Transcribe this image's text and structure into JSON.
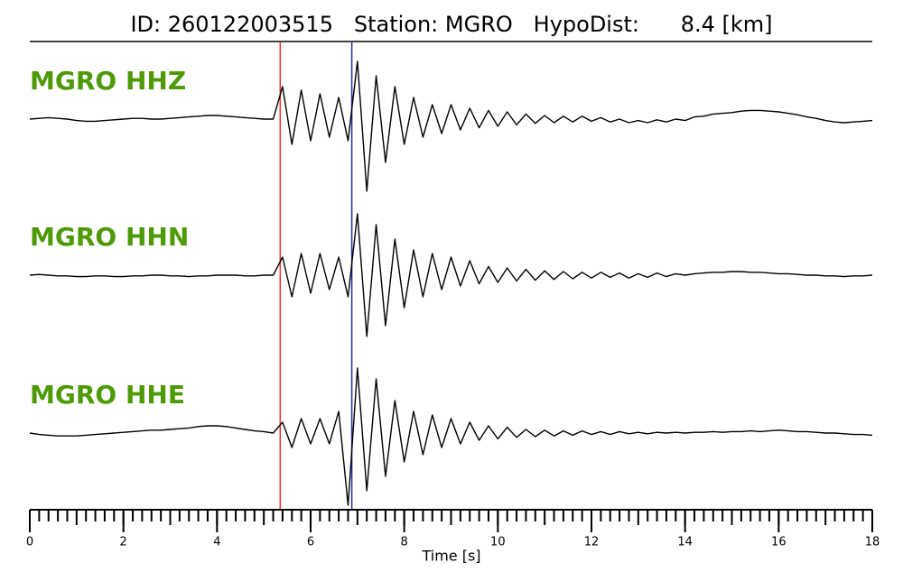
{
  "chart_data": {
    "type": "line",
    "title": "ID: 260122003515   Station: MGRO   HypoDist:      8.4 [km]",
    "xlabel": "Time [s]",
    "xlim": [
      0,
      18
    ],
    "xticks": [
      0,
      2,
      4,
      6,
      8,
      10,
      12,
      14,
      16,
      18
    ],
    "xminor_step": 0.2,
    "ylim": [
      -1,
      1
    ],
    "label_color": "#4e9a06",
    "picks": [
      {
        "x": 5.35,
        "color": "#e8312f"
      },
      {
        "x": 6.88,
        "color": "#2a2aa8"
      }
    ],
    "x": [
      0,
      0.2,
      0.4,
      0.6,
      0.8,
      1,
      1.2,
      1.4,
      1.6,
      1.8,
      2,
      2.2,
      2.4,
      2.6,
      2.8,
      3,
      3.2,
      3.4,
      3.6,
      3.8,
      4,
      4.2,
      4.4,
      4.6,
      4.8,
      5,
      5.2,
      5.4,
      5.6,
      5.8,
      6,
      6.2,
      6.4,
      6.6,
      6.8,
      7,
      7.2,
      7.4,
      7.6,
      7.8,
      8,
      8.2,
      8.4,
      8.6,
      8.8,
      9,
      9.2,
      9.4,
      9.6,
      9.8,
      10,
      10.2,
      10.4,
      10.6,
      10.8,
      11,
      11.2,
      11.4,
      11.6,
      11.8,
      12,
      12.2,
      12.4,
      12.6,
      12.8,
      13,
      13.2,
      13.4,
      13.6,
      13.8,
      14,
      14.2,
      14.4,
      14.6,
      14.8,
      15,
      15.2,
      15.4,
      15.6,
      15.8,
      16,
      16.2,
      16.4,
      16.6,
      16.8,
      17,
      17.2,
      17.4,
      17.6,
      17.8,
      18
    ],
    "series": [
      {
        "name": "MGRO HHZ",
        "color": "#000000",
        "values": [
          0,
          0.01,
          0.02,
          0.01,
          0,
          -0.02,
          -0.03,
          -0.03,
          -0.02,
          -0.01,
          0,
          0.01,
          0.01,
          0,
          0,
          0.01,
          0.02,
          0.03,
          0.04,
          0.05,
          0.05,
          0.04,
          0.03,
          0.02,
          0.01,
          0,
          0,
          0.45,
          -0.35,
          0.4,
          -0.3,
          0.35,
          -0.25,
          0.3,
          -0.3,
          0.8,
          -1.0,
          0.6,
          -0.6,
          0.45,
          -0.35,
          0.3,
          -0.25,
          0.2,
          -0.2,
          0.2,
          -0.15,
          0.15,
          -0.12,
          0.12,
          -0.1,
          0.1,
          -0.08,
          0.07,
          -0.06,
          0.05,
          -0.05,
          0.04,
          -0.04,
          0.04,
          -0.03,
          0.02,
          -0.04,
          0,
          -0.05,
          -0.02,
          -0.05,
          -0.01,
          -0.04,
          0,
          -0.02,
          0.03,
          0.04,
          0.07,
          0.08,
          0.09,
          0.11,
          0.12,
          0.12,
          0.11,
          0.1,
          0.08,
          0.06,
          0.03,
          0.01,
          -0.02,
          -0.04,
          -0.05,
          -0.04,
          -0.03,
          -0.02
        ]
      },
      {
        "name": "MGRO HHN",
        "color": "#000000",
        "values": [
          0,
          0.01,
          0,
          -0.01,
          -0.01,
          -0.02,
          -0.02,
          -0.01,
          -0.01,
          -0.02,
          -0.02,
          -0.01,
          -0.01,
          0,
          0,
          -0.01,
          -0.01,
          -0.02,
          -0.01,
          -0.01,
          0,
          0,
          0,
          -0.01,
          -0.01,
          0,
          0,
          0.25,
          -0.3,
          0.3,
          -0.25,
          0.3,
          -0.2,
          0.25,
          -0.3,
          0.85,
          -0.85,
          0.7,
          -0.7,
          0.5,
          -0.45,
          0.35,
          -0.3,
          0.3,
          -0.2,
          0.25,
          -0.15,
          0.2,
          -0.12,
          0.12,
          -0.1,
          0.1,
          -0.08,
          0.08,
          -0.07,
          0.06,
          -0.06,
          0.05,
          -0.05,
          0.04,
          -0.04,
          0.04,
          -0.03,
          0.03,
          -0.04,
          0.02,
          -0.03,
          0.03,
          -0.02,
          0.02,
          0,
          0.02,
          0.03,
          0.04,
          0.04,
          0.05,
          0.05,
          0.04,
          0.04,
          0.03,
          0.02,
          0.02,
          0.01,
          0,
          0,
          -0.01,
          -0.01,
          -0.02,
          -0.01,
          -0.01,
          0
        ]
      },
      {
        "name": "MGRO HHE",
        "color": "#000000",
        "values": [
          0,
          -0.02,
          -0.03,
          -0.04,
          -0.04,
          -0.04,
          -0.03,
          -0.02,
          -0.01,
          0,
          0.01,
          0.02,
          0.03,
          0.04,
          0.04,
          0.05,
          0.06,
          0.07,
          0.09,
          0.1,
          0.1,
          0.09,
          0.07,
          0.05,
          0.03,
          0.02,
          0,
          0.15,
          -0.2,
          0.2,
          -0.15,
          0.2,
          -0.15,
          0.3,
          -1.0,
          0.9,
          -0.8,
          0.75,
          -0.6,
          0.45,
          -0.4,
          0.3,
          -0.3,
          0.25,
          -0.2,
          0.2,
          -0.15,
          0.15,
          -0.1,
          0.1,
          -0.08,
          0.08,
          -0.06,
          0.05,
          -0.05,
          0.04,
          -0.04,
          0.03,
          -0.03,
          0.03,
          -0.02,
          0.02,
          -0.02,
          0.02,
          -0.01,
          0.01,
          -0.01,
          0.01,
          0,
          0.01,
          0,
          0.01,
          0.01,
          0.02,
          0.01,
          0.02,
          0.02,
          0.03,
          0.02,
          0.03,
          0.04,
          0.03,
          0.02,
          0.02,
          0.01,
          0,
          0,
          -0.01,
          -0.02,
          -0.02,
          -0.03
        ]
      }
    ]
  }
}
